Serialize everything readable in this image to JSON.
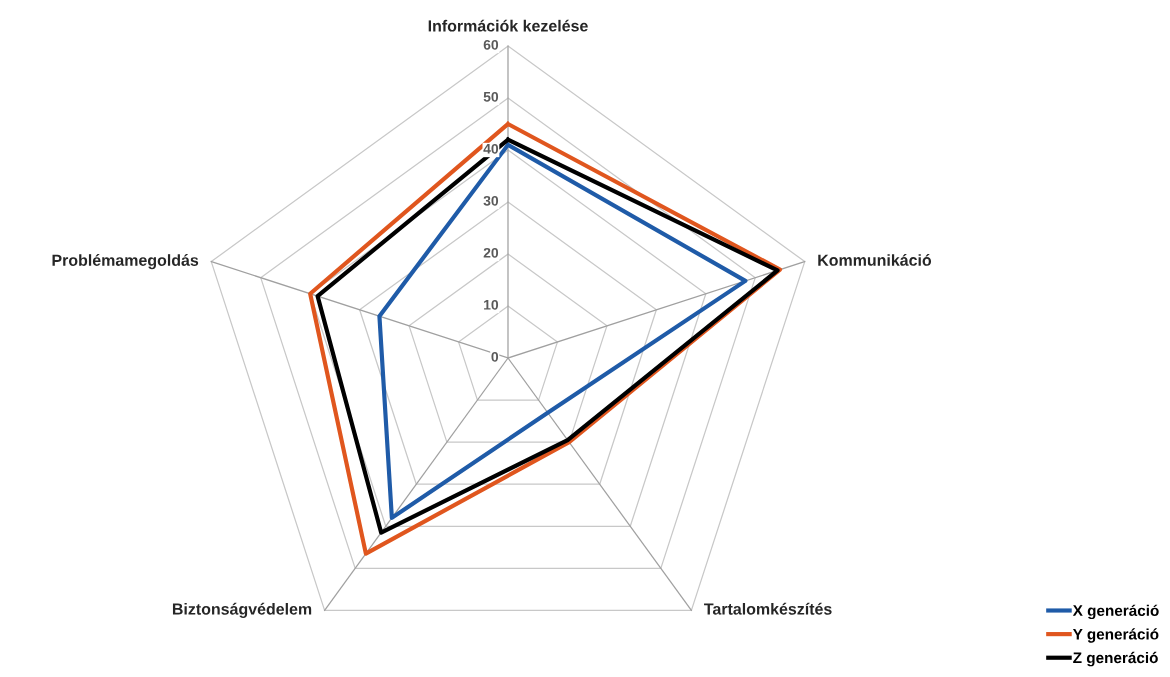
{
  "chart_data": {
    "type": "radar",
    "categories": [
      "Információk kezelése",
      "Kommunikáció",
      "Tartalomkészítés",
      "Biztonságvédelem",
      "Problémamegoldás"
    ],
    "series": [
      {
        "name": "X generáció",
        "color": "#1f5ba8",
        "values": [
          41,
          48,
          13,
          38,
          26
        ]
      },
      {
        "name": "Y generáció",
        "color": "#e0561e",
        "values": [
          45,
          55,
          20,
          46.5,
          40
        ]
      },
      {
        "name": "Z generáció",
        "color": "#000000",
        "values": [
          42,
          54.5,
          19.5,
          41.5,
          38.5
        ]
      }
    ],
    "ylim": [
      0,
      60
    ],
    "yticks": [
      0,
      10,
      20,
      30,
      40,
      50,
      60
    ],
    "grid": true,
    "legend": "bottom right",
    "marker": "none",
    "line_style": "solid"
  }
}
